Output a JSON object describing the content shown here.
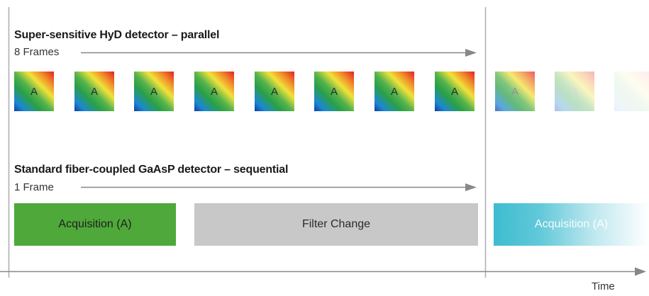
{
  "parallel": {
    "title": "Super-sensitive HyD detector – parallel",
    "frames_label": "8 Frames",
    "tile_label": "A",
    "tile_count_within": 8,
    "tile_count_faded": 3
  },
  "sequential": {
    "title": "Standard fiber-coupled GaAsP detector – sequential",
    "frames_label": "1 Frame",
    "blocks": [
      {
        "label": "Acquisition (A)",
        "color": "#4ea83a"
      },
      {
        "label": "Filter Change",
        "color": "#c8c8c8"
      },
      {
        "label": "Acquisition (A)",
        "color": "#3dbcd0"
      }
    ]
  },
  "time_axis": {
    "label": "Time"
  },
  "colors": {
    "arrow": "#888888",
    "divider": "#b0b0b0",
    "text": "#333333"
  }
}
